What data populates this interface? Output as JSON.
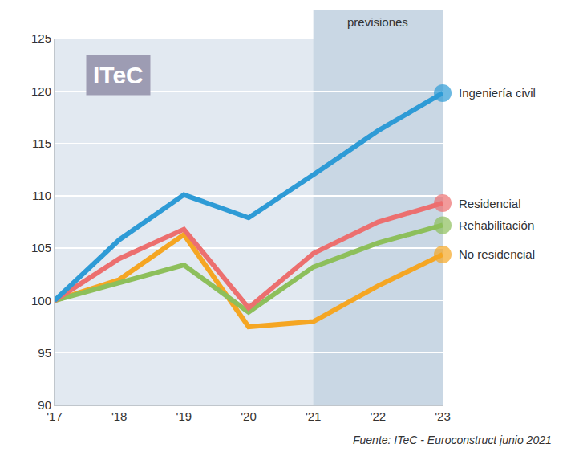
{
  "chart_data": {
    "type": "line",
    "logo_text": "ITeC",
    "source": "Fuente: ITeC - Euroconstruct junio 2021",
    "forecast": {
      "label": "previsiones",
      "start": "'21",
      "end": "'23"
    },
    "categories": [
      "'17",
      "'18",
      "'19",
      "'20",
      "'21",
      "'22",
      "'23"
    ],
    "series": [
      {
        "name": "Ingeniería civil",
        "color": "#2e9bd6",
        "values": [
          100,
          105.8,
          110.1,
          107.9,
          112,
          116.2,
          119.8
        ]
      },
      {
        "name": "Residencial",
        "color": "#ec6f6f",
        "values": [
          100,
          104,
          106.8,
          99.3,
          104.5,
          107.5,
          109.3
        ]
      },
      {
        "name": "Rehabilitación",
        "color": "#8dbf5b",
        "values": [
          100,
          101.7,
          103.4,
          98.9,
          103.2,
          105.5,
          107.2
        ]
      },
      {
        "name": "No residencial",
        "color": "#f5a623",
        "values": [
          100,
          102,
          106.3,
          97.5,
          98,
          101.4,
          104.4
        ]
      }
    ],
    "ylim": [
      90,
      125
    ],
    "yticks": [
      90,
      95,
      100,
      105,
      110,
      115,
      120,
      125
    ],
    "grid": true
  }
}
